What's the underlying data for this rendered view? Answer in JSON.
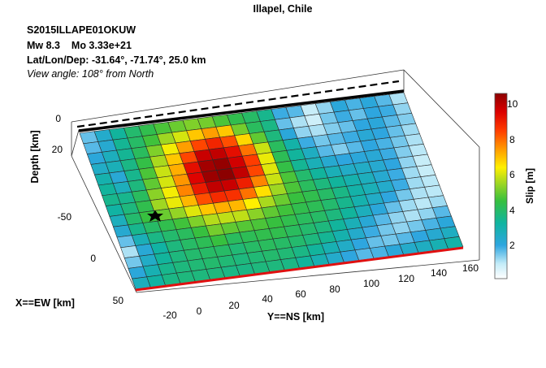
{
  "chart_data": {
    "type": "heatmap",
    "title": "Illapel, Chile",
    "header": {
      "event_id": "S2015ILLAPE01OKUW",
      "magnitude": "Mw 8.3",
      "moment": "Mo 3.33e+21",
      "location": "Lat/Lon/Dep: -31.64°, -71.74°, 25.0 km",
      "view_angle": "View angle: 108° from North"
    },
    "axes": {
      "x": {
        "label": "X==EW [km]",
        "ticks": [
          "50",
          "0",
          "-50"
        ]
      },
      "y": {
        "label": "Y==NS [km]",
        "ticks": [
          "-20",
          "0",
          "20",
          "40",
          "60",
          "80",
          "100",
          "120",
          "140",
          "160"
        ]
      },
      "z": {
        "label": "Depth [km]",
        "ticks": [
          "0",
          "20"
        ]
      }
    },
    "colorbar": {
      "label": "Slip [m]",
      "range": [
        0,
        10.5
      ],
      "ticks": [
        "2",
        "4",
        "6",
        "8",
        "10"
      ],
      "colormap": "jet-like (white to blue to green to yellow to red)"
    },
    "grid": {
      "rows": 15,
      "cols": 22
    },
    "slip_m": [
      [
        1.5,
        2.3,
        3.2,
        3.8,
        4.2,
        4.6,
        4.9,
        5.1,
        5.0,
        4.6,
        4.2,
        3.9,
        3.4,
        1.8,
        1.6,
        0.8,
        1.2,
        2.0,
        1.7,
        2.0,
        1.6,
        1.0
      ],
      [
        1.6,
        2.2,
        3.3,
        3.9,
        4.5,
        5.4,
        5.9,
        6.8,
        7.3,
        6.8,
        5.0,
        4.0,
        3.5,
        1.5,
        1.0,
        0.7,
        1.4,
        1.8,
        1.5,
        1.9,
        1.8,
        1.2
      ],
      [
        2.0,
        2.6,
        3.3,
        4.0,
        5.1,
        6.2,
        7.3,
        8.3,
        8.8,
        8.2,
        6.6,
        4.8,
        3.6,
        2.0,
        1.2,
        1.0,
        1.3,
        1.5,
        1.9,
        2.0,
        1.6,
        1.3
      ],
      [
        2.4,
        2.7,
        3.5,
        4.3,
        5.5,
        6.8,
        8.3,
        9.7,
        9.8,
        9.2,
        7.8,
        5.8,
        4.0,
        3.0,
        1.8,
        1.4,
        1.6,
        1.8,
        2.1,
        1.9,
        1.5,
        1.1
      ],
      [
        2.9,
        2.1,
        3.4,
        4.6,
        5.8,
        7.1,
        9.2,
        10.2,
        10.4,
        9.6,
        8.4,
        6.1,
        4.1,
        3.2,
        2.5,
        1.6,
        1.3,
        1.6,
        1.9,
        1.7,
        1.4,
        1.0
      ],
      [
        3.2,
        2.6,
        3.6,
        4.8,
        5.9,
        7.4,
        9.4,
        10.3,
        10.5,
        9.8,
        8.3,
        6.0,
        4.3,
        3.3,
        2.7,
        2.2,
        1.9,
        2.0,
        2.1,
        1.8,
        1.3,
        0.9
      ],
      [
        3.4,
        3.4,
        4.0,
        5.2,
        6.2,
        7.6,
        9.0,
        9.8,
        9.7,
        8.9,
        7.6,
        5.8,
        4.6,
        3.8,
        3.2,
        2.7,
        2.4,
        2.4,
        2.2,
        1.9,
        1.2,
        0.8
      ],
      [
        3.1,
        3.6,
        4.2,
        5.4,
        6.1,
        7.0,
        8.2,
        8.7,
        8.6,
        7.8,
        6.5,
        5.4,
        4.6,
        4.0,
        3.6,
        3.2,
        2.9,
        2.6,
        2.2,
        1.8,
        1.1,
        0.8
      ],
      [
        2.6,
        3.8,
        4.4,
        4.9,
        5.3,
        6.0,
        6.8,
        7.1,
        7.0,
        6.3,
        5.5,
        4.9,
        4.4,
        4.2,
        3.9,
        3.5,
        3.0,
        2.7,
        2.3,
        1.8,
        1.1,
        0.9
      ],
      [
        2.2,
        3.4,
        3.9,
        4.2,
        4.5,
        5.1,
        5.6,
        5.7,
        5.7,
        5.2,
        4.8,
        4.5,
        4.2,
        4.1,
        3.8,
        3.4,
        2.9,
        2.4,
        1.9,
        1.4,
        1.0,
        0.9
      ],
      [
        1.5,
        2.7,
        3.5,
        3.8,
        4.0,
        4.4,
        5.0,
        4.8,
        4.7,
        4.6,
        4.4,
        4.2,
        4.0,
        3.9,
        3.6,
        3.2,
        2.6,
        2.0,
        1.5,
        1.1,
        0.9,
        1.1
      ],
      [
        1.0,
        2.1,
        3.1,
        3.6,
        3.9,
        4.1,
        4.4,
        4.0,
        4.1,
        4.2,
        4.2,
        4.0,
        3.8,
        3.6,
        3.2,
        2.7,
        2.1,
        1.6,
        1.2,
        1.0,
        1.2,
        1.6
      ],
      [
        1.4,
        2.4,
        3.2,
        3.6,
        3.8,
        3.9,
        3.9,
        3.7,
        3.9,
        4.0,
        3.9,
        3.8,
        3.6,
        3.3,
        2.9,
        2.3,
        1.8,
        1.4,
        1.2,
        1.4,
        1.7,
        2.0
      ],
      [
        2.0,
        2.8,
        3.4,
        3.6,
        3.7,
        3.8,
        3.7,
        3.6,
        3.7,
        3.8,
        3.7,
        3.5,
        3.2,
        2.8,
        2.4,
        1.9,
        1.5,
        1.4,
        1.6,
        1.9,
        2.2,
        2.5
      ],
      [
        2.6,
        3.1,
        3.5,
        3.6,
        3.6,
        3.6,
        3.5,
        3.5,
        3.6,
        3.6,
        3.5,
        3.2,
        2.8,
        2.3,
        1.9,
        1.6,
        1.7,
        2.0,
        2.3,
        2.5,
        2.8,
        3.0
      ]
    ],
    "hypocenter_marker": "star"
  }
}
